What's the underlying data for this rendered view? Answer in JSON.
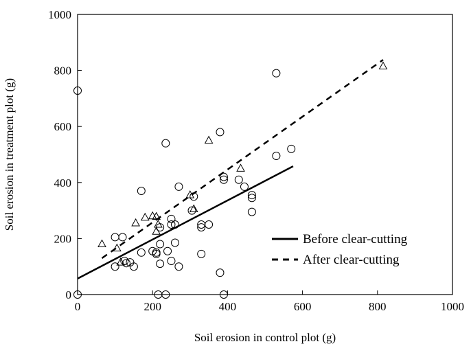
{
  "chart_data": {
    "type": "scatter",
    "xlabel": "Soil erosion in control plot (g)",
    "ylabel": "Soil erosion in treatment plot (g)",
    "xlim": [
      0,
      1000
    ],
    "ylim": [
      0,
      1000
    ],
    "xticks": [
      0,
      200,
      400,
      600,
      800,
      1000
    ],
    "yticks": [
      0,
      200,
      400,
      600,
      800,
      1000
    ],
    "grid": false,
    "legend_position": "lower-right",
    "series": [
      {
        "name": "Before clear-cutting",
        "marker": "circle",
        "line_style": "solid",
        "points": [
          [
            0,
            728
          ],
          [
            0,
            0
          ],
          [
            100,
            100
          ],
          [
            100,
            205
          ],
          [
            120,
            205
          ],
          [
            125,
            120
          ],
          [
            130,
            112
          ],
          [
            140,
            115
          ],
          [
            150,
            100
          ],
          [
            170,
            150
          ],
          [
            170,
            370
          ],
          [
            200,
            155
          ],
          [
            210,
            150
          ],
          [
            210,
            145
          ],
          [
            220,
            180
          ],
          [
            220,
            240
          ],
          [
            220,
            110
          ],
          [
            215,
            0
          ],
          [
            235,
            0
          ],
          [
            235,
            540
          ],
          [
            240,
            155
          ],
          [
            250,
            250
          ],
          [
            250,
            120
          ],
          [
            250,
            270
          ],
          [
            260,
            185
          ],
          [
            260,
            250
          ],
          [
            270,
            100
          ],
          [
            270,
            385
          ],
          [
            305,
            300
          ],
          [
            310,
            350
          ],
          [
            330,
            250
          ],
          [
            330,
            240
          ],
          [
            330,
            145
          ],
          [
            350,
            250
          ],
          [
            380,
            580
          ],
          [
            380,
            78
          ],
          [
            390,
            420
          ],
          [
            390,
            410
          ],
          [
            390,
            0
          ],
          [
            430,
            410
          ],
          [
            445,
            385
          ],
          [
            465,
            345
          ],
          [
            465,
            355
          ],
          [
            465,
            295
          ],
          [
            530,
            495
          ],
          [
            530,
            790
          ],
          [
            570,
            520
          ]
        ],
        "trend": [
          [
            0,
            57
          ],
          [
            575,
            458
          ]
        ]
      },
      {
        "name": "After clear-cutting",
        "marker": "triangle",
        "line_style": "dashed",
        "points": [
          [
            65,
            180
          ],
          [
            105,
            165
          ],
          [
            115,
            115
          ],
          [
            155,
            255
          ],
          [
            180,
            275
          ],
          [
            200,
            280
          ],
          [
            210,
            278
          ],
          [
            210,
            225
          ],
          [
            215,
            250
          ],
          [
            300,
            355
          ],
          [
            310,
            305
          ],
          [
            350,
            550
          ],
          [
            435,
            450
          ],
          [
            815,
            815
          ]
        ],
        "trend": [
          [
            65,
            130
          ],
          [
            815,
            838
          ]
        ]
      }
    ]
  }
}
